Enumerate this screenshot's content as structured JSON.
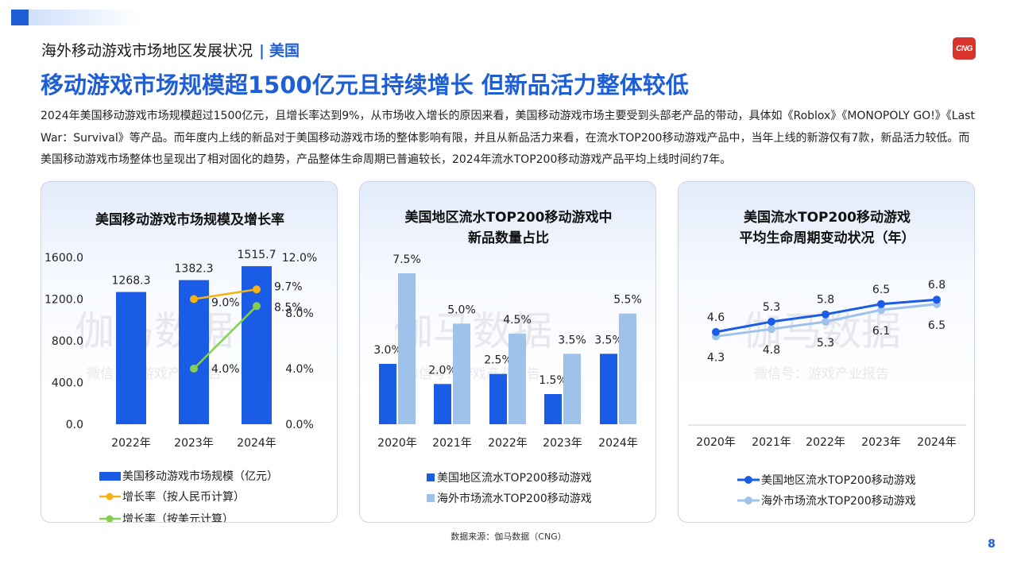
{
  "header": {
    "section": "海外移动游戏市场地区发展状况",
    "separator": "|",
    "region": "美国",
    "logo_text": "CNG",
    "title": "移动游戏市场规模超1500亿元且持续增长 但新品活力整体较低",
    "body": "2024年美国移动游戏市场规模超过1500亿元，且增长率达到9%，从市场收入增长的原因来看，美国移动游戏市场主要受到头部老产品的带动，具体如《Roblox》《MONOPOLY GO!》《Last War：Survival》等产品。而年度内上线的新品对于美国移动游戏市场的整体影响有限，并且从新品活力来看，在流水TOP200移动游戏产品中，当年上线的新游仅有7款，新品活力较低。而美国移动游戏市场整体也呈现出了相对固化的趋势，产品整体生命周期已普遍较长，2024年流水TOP200移动游戏产品平均上线时间约7年。"
  },
  "watermark": {
    "main": "伽马数据",
    "sub": "微信号：游戏产业报告"
  },
  "colors": {
    "blue": "#1a5ce5",
    "light_blue": "#9fc2ea",
    "orange": "#f6b311",
    "green": "#86cf4f",
    "accent": "#1f5fd6"
  },
  "chart_data": [
    {
      "type": "bar",
      "title_lines": [
        "美国移动游戏市场规模及增长率"
      ],
      "categories": [
        "2022年",
        "2023年",
        "2024年"
      ],
      "y_ticks": [
        "1600.0",
        "1200.0",
        "800.0",
        "400.0",
        "0.0"
      ],
      "y2_ticks": [
        "12.0%",
        "8.0%",
        "4.0%",
        "0.0%"
      ],
      "ylim": [
        0,
        1600
      ],
      "y2lim": [
        0,
        12
      ],
      "bars": {
        "name": "美国移动游戏市场规模（亿元）",
        "values": [
          1268.3,
          1382.3,
          1515.7
        ],
        "labels": [
          "1268.3",
          "1382.3",
          "1515.7"
        ]
      },
      "lines": [
        {
          "name": "增长率（按人民币计算）",
          "points": [
            [
              1,
              9.0
            ],
            [
              2,
              9.7
            ]
          ],
          "labels": [
            "9.0%",
            "9.7%"
          ]
        },
        {
          "name": "增长率（按美元计算）",
          "points": [
            [
              1,
              4.0
            ],
            [
              2,
              8.5
            ]
          ],
          "labels": [
            "4.0%",
            "8.5%"
          ]
        }
      ]
    },
    {
      "type": "bar",
      "title_lines": [
        "美国地区流水TOP200移动游戏中",
        "新品数量占比"
      ],
      "categories": [
        "2020年",
        "2021年",
        "2022年",
        "2023年",
        "2024年"
      ],
      "series": [
        {
          "name": "美国地区流水TOP200移动游戏",
          "values": [
            3.0,
            2.0,
            2.5,
            1.5,
            3.5
          ],
          "labels": [
            "3.0%",
            "2.0%",
            "2.5%",
            "1.5%",
            "3.5%"
          ]
        },
        {
          "name": "海外市场流水TOP200移动游戏",
          "values": [
            7.5,
            5.0,
            4.5,
            3.5,
            5.5
          ],
          "labels": [
            "7.5%",
            "5.0%",
            "4.5%",
            "3.5%",
            "5.5%"
          ]
        }
      ]
    },
    {
      "type": "line",
      "title_lines": [
        "美国流水TOP200移动游戏",
        "平均生命周期变动状况（年）"
      ],
      "categories": [
        "2020年",
        "2021年",
        "2022年",
        "2023年",
        "2024年"
      ],
      "series": [
        {
          "name": "美国地区流水TOP200移动游戏",
          "values": [
            4.6,
            5.3,
            5.8,
            6.5,
            6.8
          ],
          "labels": [
            "4.6",
            "5.3",
            "5.8",
            "6.5",
            "6.8"
          ]
        },
        {
          "name": "海外市场流水TOP200移动游戏",
          "values": [
            4.3,
            4.8,
            5.3,
            6.1,
            6.5
          ],
          "labels": [
            "4.3",
            "4.8",
            "5.3",
            "6.1",
            "6.5"
          ]
        }
      ]
    }
  ],
  "footer": {
    "source": "数据来源：伽马数据（CNG）",
    "page": "8"
  }
}
